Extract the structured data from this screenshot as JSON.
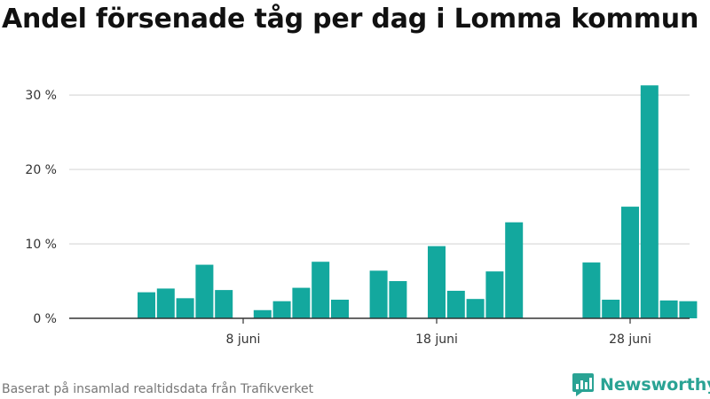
{
  "title": "Andel försenade tåg per dag i Lomma kommun",
  "source": "Baserat på insamlad realtidsdata från Trafikverket",
  "brand": "Newsworthy",
  "colors": {
    "bar": "#13a89e",
    "grid": "#dddddd",
    "axis": "#333333",
    "brand": "#2aa394"
  },
  "chart_data": {
    "type": "bar",
    "x_unit": "day (juni)",
    "x_domain": [
      1,
      31
    ],
    "ylim": [
      0,
      33
    ],
    "yticks": [
      {
        "value": 0,
        "label": "0 %"
      },
      {
        "value": 10,
        "label": "10 %"
      },
      {
        "value": 20,
        "label": "20 %"
      },
      {
        "value": 30,
        "label": "30 %"
      }
    ],
    "xticks": [
      {
        "value": 8,
        "label": "8 juni"
      },
      {
        "value": 18,
        "label": "18 juni"
      },
      {
        "value": 28,
        "label": "28 juni"
      }
    ],
    "grid": true,
    "legend": "none",
    "points": [
      {
        "x": 3,
        "y": 3.5
      },
      {
        "x": 4,
        "y": 4.0
      },
      {
        "x": 5,
        "y": 2.7
      },
      {
        "x": 6,
        "y": 7.2
      },
      {
        "x": 7,
        "y": 3.8
      },
      {
        "x": 9,
        "y": 1.1
      },
      {
        "x": 10,
        "y": 2.3
      },
      {
        "x": 11,
        "y": 4.1
      },
      {
        "x": 12,
        "y": 7.6
      },
      {
        "x": 13,
        "y": 2.5
      },
      {
        "x": 15,
        "y": 6.4
      },
      {
        "x": 16,
        "y": 5.0
      },
      {
        "x": 18,
        "y": 9.7
      },
      {
        "x": 19,
        "y": 3.7
      },
      {
        "x": 20,
        "y": 2.6
      },
      {
        "x": 21,
        "y": 6.3
      },
      {
        "x": 22,
        "y": 12.9
      },
      {
        "x": 26,
        "y": 7.5
      },
      {
        "x": 27,
        "y": 2.5
      },
      {
        "x": 28,
        "y": 15.0
      },
      {
        "x": 29,
        "y": 31.3
      },
      {
        "x": 30,
        "y": 2.4
      },
      {
        "x": 31,
        "y": 2.3
      }
    ]
  }
}
